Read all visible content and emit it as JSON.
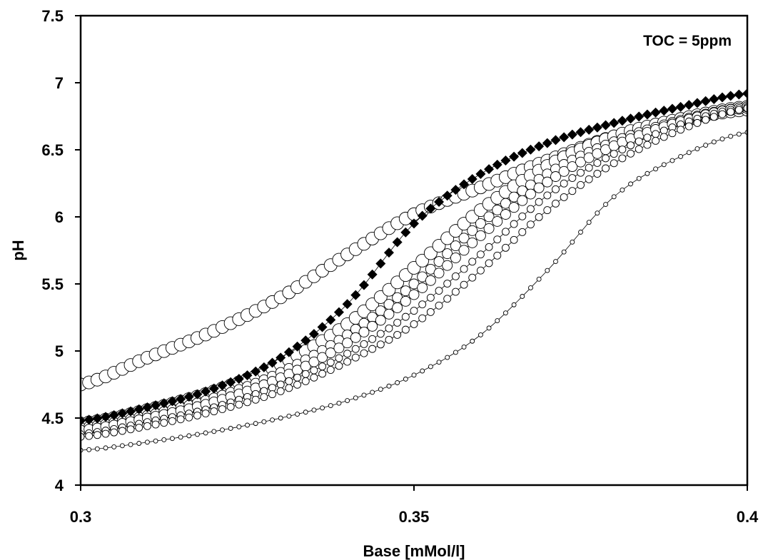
{
  "chart_data": {
    "type": "scatter",
    "title": "",
    "xlabel": "Base [mMol/l]",
    "ylabel": "pH",
    "xlim": [
      0.3,
      0.4
    ],
    "ylim": [
      4,
      7.5
    ],
    "x_ticks": [
      "0.3",
      "0.35",
      "0.4"
    ],
    "y_ticks": [
      "4",
      "4.5",
      "5",
      "5.5",
      "6",
      "6.5",
      "7",
      "7.5"
    ],
    "grid": false,
    "legend": "none",
    "annotation": "TOC = 5ppm",
    "colors": {
      "filled_marker": "#000000",
      "open_marker_fill": "#ffffff",
      "stroke": "#000000"
    },
    "series": [
      {
        "marker": "diamond-filled",
        "marker_size": "medium",
        "x": [
          0.3,
          0.31,
          0.32,
          0.33,
          0.34,
          0.35,
          0.36,
          0.37,
          0.38,
          0.39,
          0.4
        ],
        "y": [
          4.48,
          4.58,
          4.72,
          4.95,
          5.35,
          5.95,
          6.32,
          6.55,
          6.7,
          6.82,
          6.92
        ]
      },
      {
        "marker": "circle-open",
        "marker_size": "large",
        "x": [
          0.3,
          0.31,
          0.32,
          0.33,
          0.34,
          0.35,
          0.36,
          0.37,
          0.38,
          0.39,
          0.4
        ],
        "y": [
          4.75,
          4.95,
          5.15,
          5.4,
          5.72,
          6.02,
          6.22,
          6.42,
          6.6,
          6.72,
          6.8
        ]
      },
      {
        "marker": "circle-open",
        "marker_size": "large",
        "x": [
          0.3,
          0.31,
          0.32,
          0.33,
          0.34,
          0.35,
          0.36,
          0.37,
          0.38,
          0.39,
          0.4
        ],
        "y": [
          4.46,
          4.56,
          4.7,
          4.9,
          5.2,
          5.62,
          6.05,
          6.38,
          6.6,
          6.73,
          6.82
        ]
      },
      {
        "marker": "circle-open",
        "marker_size": "medium",
        "x": [
          0.3,
          0.31,
          0.32,
          0.33,
          0.34,
          0.35,
          0.36,
          0.37,
          0.38,
          0.39,
          0.4
        ],
        "y": [
          4.43,
          4.52,
          4.65,
          4.84,
          5.12,
          5.5,
          5.95,
          6.32,
          6.56,
          6.72,
          6.82
        ]
      },
      {
        "marker": "circle-open",
        "marker_size": "medium",
        "x": [
          0.3,
          0.31,
          0.32,
          0.33,
          0.34,
          0.35,
          0.36,
          0.37,
          0.38,
          0.39,
          0.4
        ],
        "y": [
          4.41,
          4.5,
          4.62,
          4.8,
          5.06,
          5.42,
          5.86,
          6.26,
          6.53,
          6.71,
          6.82
        ]
      },
      {
        "marker": "circle-open",
        "marker_size": "small",
        "x": [
          0.3,
          0.31,
          0.32,
          0.33,
          0.34,
          0.35,
          0.36,
          0.37,
          0.38,
          0.39,
          0.4
        ],
        "y": [
          4.38,
          4.47,
          4.58,
          4.75,
          4.98,
          5.3,
          5.72,
          6.16,
          6.47,
          6.69,
          6.82
        ]
      },
      {
        "marker": "circle-open",
        "marker_size": "small",
        "x": [
          0.3,
          0.31,
          0.32,
          0.33,
          0.34,
          0.35,
          0.36,
          0.37,
          0.38,
          0.39,
          0.4
        ],
        "y": [
          4.36,
          4.44,
          4.55,
          4.7,
          4.92,
          5.2,
          5.6,
          6.05,
          6.4,
          6.65,
          6.81
        ]
      },
      {
        "marker": "circle-open",
        "marker_size": "tiny",
        "x": [
          0.3,
          0.31,
          0.32,
          0.33,
          0.34,
          0.35,
          0.36,
          0.37,
          0.38,
          0.39,
          0.4
        ],
        "y": [
          4.26,
          4.32,
          4.4,
          4.5,
          4.63,
          4.82,
          5.12,
          5.6,
          6.15,
          6.45,
          6.63
        ]
      }
    ]
  }
}
